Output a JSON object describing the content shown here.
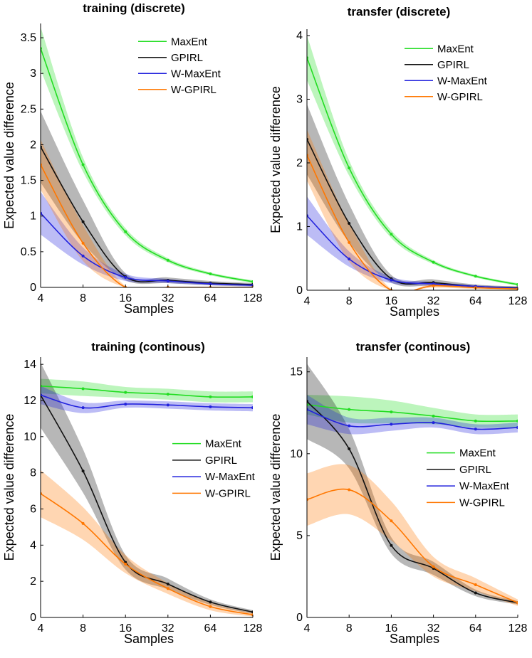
{
  "chart_data": [
    {
      "type": "line",
      "title": "training (discrete)",
      "xlabel": "Samples",
      "ylabel": "Expected value difference",
      "x": [
        4,
        8,
        16,
        32,
        64,
        128
      ],
      "xscale": "log2",
      "xlim": [
        4,
        128
      ],
      "ylim": [
        0,
        3.7
      ],
      "yticks": [
        0,
        0.5,
        1,
        1.5,
        2,
        2.5,
        3,
        3.5
      ],
      "yticklabels": [
        "0",
        "0.5",
        "1",
        "1.5",
        "2",
        "2.5",
        "3",
        "3.5"
      ],
      "xticklabels": [
        "4",
        "8",
        "16",
        "32",
        "64",
        "128"
      ],
      "legend": "top-right",
      "series": [
        {
          "name": "MaxEnt",
          "color": "#22dd22",
          "values": [
            3.35,
            1.72,
            0.78,
            0.38,
            0.19,
            0.08
          ],
          "band": [
            0.3,
            0.1,
            0.05,
            0.03,
            0.02,
            0.02
          ]
        },
        {
          "name": "GPIRL",
          "color": "#111111",
          "values": [
            1.97,
            0.92,
            0.15,
            0.1,
            0.06,
            0.04
          ],
          "band": [
            0.5,
            0.3,
            0.05,
            0.04,
            0.03,
            0.02
          ]
        },
        {
          "name": "W-MaxEnt",
          "color": "#2222dd",
          "values": [
            1.04,
            0.44,
            0.14,
            0.09,
            0.05,
            0.03
          ],
          "band": [
            0.3,
            0.12,
            0.05,
            0.03,
            0.02,
            0.02
          ]
        },
        {
          "name": "W-GPIRL",
          "color": "#ff7700",
          "values": [
            1.72,
            0.62,
            0.0,
            0.0,
            0.0,
            0.0
          ],
          "band": [
            0.35,
            0.25,
            0.02,
            0.01,
            0.01,
            0.01
          ]
        }
      ]
    },
    {
      "type": "line",
      "title": "transfer (discrete)",
      "xlabel": "Samples",
      "ylabel": "Expected value difference",
      "x": [
        4,
        8,
        16,
        32,
        64,
        128
      ],
      "xscale": "log2",
      "xlim": [
        4,
        128
      ],
      "ylim": [
        0,
        4.1
      ],
      "yticks": [
        0,
        1,
        2,
        3,
        4
      ],
      "yticklabels": [
        "0",
        "1",
        "2",
        "3",
        "4"
      ],
      "xticklabels": [
        "4",
        "8",
        "16",
        "32",
        "64",
        "128"
      ],
      "legend": "top-right",
      "series": [
        {
          "name": "MaxEnt",
          "color": "#22dd22",
          "values": [
            3.65,
            1.92,
            0.88,
            0.44,
            0.22,
            0.09
          ],
          "band": [
            0.35,
            0.12,
            0.06,
            0.03,
            0.02,
            0.02
          ]
        },
        {
          "name": "GPIRL",
          "color": "#111111",
          "values": [
            2.37,
            1.05,
            0.18,
            0.12,
            0.06,
            0.04
          ],
          "band": [
            0.55,
            0.3,
            0.06,
            0.05,
            0.03,
            0.02
          ]
        },
        {
          "name": "W-MaxEnt",
          "color": "#2222dd",
          "values": [
            1.17,
            0.49,
            0.16,
            0.1,
            0.06,
            0.03
          ],
          "band": [
            0.3,
            0.12,
            0.05,
            0.03,
            0.02,
            0.02
          ]
        },
        {
          "name": "W-GPIRL",
          "color": "#ff7700",
          "values": [
            2.12,
            0.75,
            0.0,
            0.07,
            0.04,
            0.02
          ],
          "band": [
            0.4,
            0.3,
            0.02,
            0.03,
            0.02,
            0.01
          ]
        }
      ]
    },
    {
      "type": "line",
      "title": "training (continous)",
      "xlabel": "Samples",
      "ylabel": "Expected value difference",
      "x": [
        4,
        8,
        16,
        32,
        64,
        128
      ],
      "xscale": "log2",
      "xlim": [
        4,
        128
      ],
      "ylim": [
        0,
        14.4
      ],
      "yticks": [
        0,
        2,
        4,
        6,
        8,
        10,
        12,
        14
      ],
      "yticklabels": [
        "0",
        "2",
        "4",
        "6",
        "8",
        "10",
        "12",
        "14"
      ],
      "xticklabels": [
        "4",
        "8",
        "16",
        "32",
        "64",
        "128"
      ],
      "legend": "center-right",
      "series": [
        {
          "name": "MaxEnt",
          "color": "#22dd22",
          "values": [
            12.8,
            12.65,
            12.45,
            12.35,
            12.2,
            12.2
          ],
          "band": [
            0.4,
            0.4,
            0.3,
            0.3,
            0.3,
            0.3
          ]
        },
        {
          "name": "GPIRL",
          "color": "#111111",
          "values": [
            12.3,
            8.1,
            3.05,
            1.85,
            0.85,
            0.3
          ],
          "band": [
            1.8,
            1.2,
            0.4,
            0.3,
            0.15,
            0.1
          ]
        },
        {
          "name": "W-MaxEnt",
          "color": "#2222dd",
          "values": [
            12.3,
            11.6,
            11.8,
            11.75,
            11.65,
            11.6
          ],
          "band": [
            0.5,
            0.3,
            0.2,
            0.2,
            0.2,
            0.2
          ]
        },
        {
          "name": "W-GPIRL",
          "color": "#ff7700",
          "values": [
            6.85,
            5.2,
            2.95,
            1.6,
            0.6,
            0.15
          ],
          "band": [
            1.3,
            0.9,
            0.5,
            0.3,
            0.2,
            0.1
          ]
        }
      ]
    },
    {
      "type": "line",
      "title": "transfer (continous)",
      "xlabel": "Samples",
      "ylabel": "Expected value difference",
      "x": [
        4,
        8,
        16,
        32,
        64,
        128
      ],
      "xscale": "log2",
      "xlim": [
        4,
        128
      ],
      "ylim": [
        0,
        15.9
      ],
      "yticks": [
        0,
        5,
        10,
        15
      ],
      "yticklabels": [
        "0",
        "5",
        "10",
        "15"
      ],
      "xticklabels": [
        "4",
        "8",
        "16",
        "32",
        "64",
        "128"
      ],
      "legend": "center-right",
      "series": [
        {
          "name": "MaxEnt",
          "color": "#22dd22",
          "values": [
            13.0,
            12.7,
            12.55,
            12.3,
            12.0,
            12.0
          ],
          "band": [
            0.6,
            0.8,
            0.7,
            0.5,
            0.4,
            0.4
          ]
        },
        {
          "name": "GPIRL",
          "color": "#111111",
          "values": [
            13.2,
            10.3,
            4.4,
            3.0,
            1.5,
            0.9
          ],
          "band": [
            2.3,
            1.2,
            0.5,
            0.4,
            0.2,
            0.1
          ]
        },
        {
          "name": "W-MaxEnt",
          "color": "#2222dd",
          "values": [
            12.7,
            11.7,
            11.8,
            11.9,
            11.5,
            11.6
          ],
          "band": [
            0.9,
            0.5,
            0.4,
            0.3,
            0.3,
            0.3
          ]
        },
        {
          "name": "W-GPIRL",
          "color": "#ff7700",
          "values": [
            7.2,
            7.8,
            5.9,
            3.1,
            2.0,
            0.9
          ],
          "band": [
            1.6,
            1.5,
            1.2,
            0.6,
            0.4,
            0.2
          ]
        }
      ]
    }
  ]
}
